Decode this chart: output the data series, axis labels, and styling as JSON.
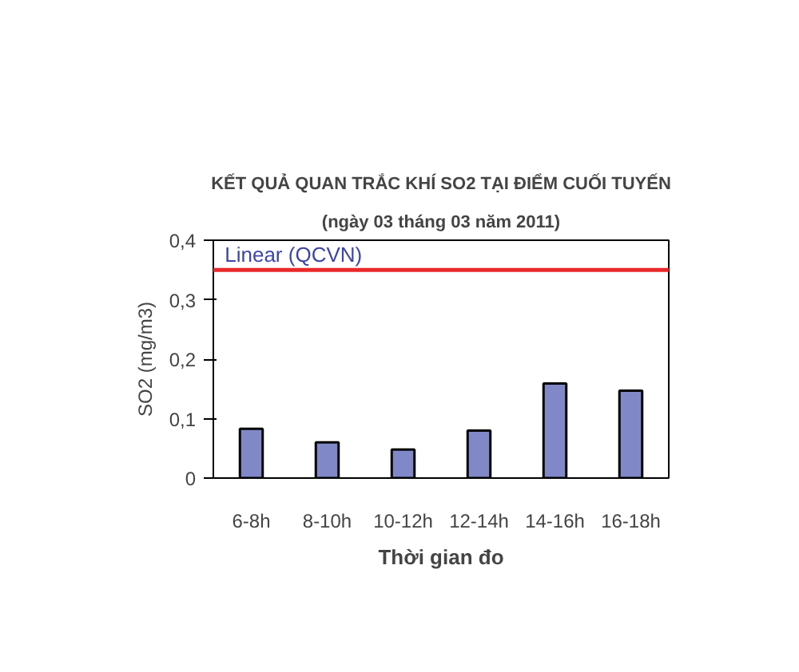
{
  "chart_data": {
    "type": "bar",
    "title": "KẾT QUẢ QUAN TRẮC KHÍ SO2 TẠI ĐIỂM CUỐI TUYẾN",
    "subtitle": "(ngày 03 tháng 03 năm 2011)",
    "xlabel": "Thời gian đo",
    "ylabel": "SO2 (mg/m3)",
    "categories": [
      "6-8h",
      "8-10h",
      "10-12h",
      "12-14h",
      "14-16h",
      "16-18h"
    ],
    "values": [
      0.083,
      0.06,
      0.048,
      0.08,
      0.159,
      0.147
    ],
    "color": "#8088c8",
    "ylim": [
      0,
      0.4
    ],
    "yticks": [
      0,
      {
        "value": 0.1,
        "label": "0,1"
      },
      {
        "value": 0.2,
        "label": "0,2"
      },
      {
        "value": 0.3,
        "label": "0,3"
      },
      {
        "value": 0.4,
        "label": "0,4"
      }
    ],
    "ref_lines": [
      {
        "axis": "y",
        "value": 0.35,
        "label": "Linear (QCVN)",
        "color": "#e8282a"
      }
    ],
    "grid": false
  }
}
